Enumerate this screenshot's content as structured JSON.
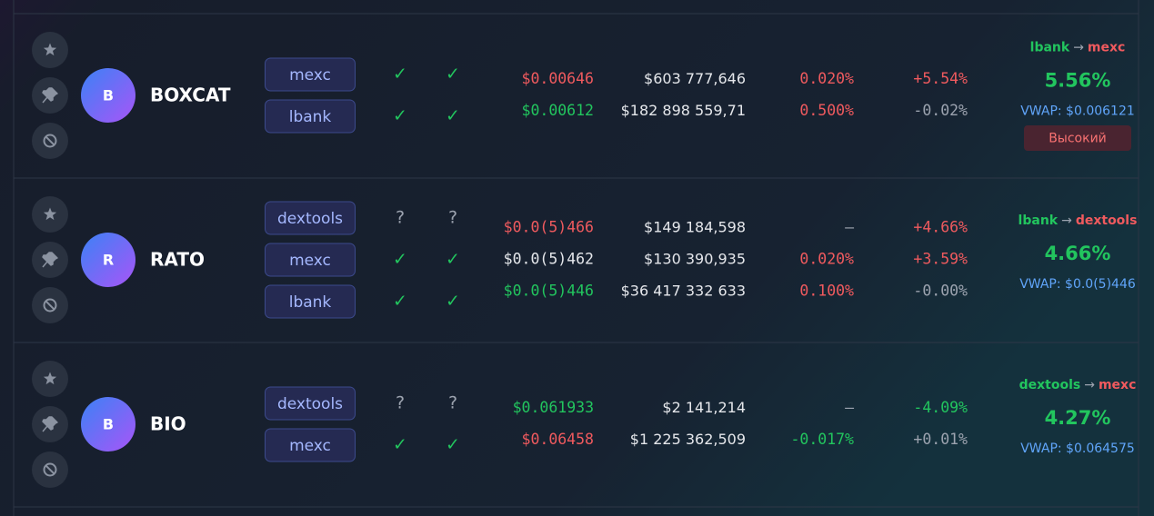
{
  "rows": [
    {
      "avatar": "B",
      "symbol": "BOXCAT",
      "exchanges": [
        {
          "name": "mexc",
          "spot": "✓",
          "futures": "✓",
          "status_color": "#22c55e",
          "price": "$0.00646",
          "price_color": "#f05a5e",
          "volume": "$603 777,646",
          "funding": "0.020%",
          "funding_color": "#f05a5e",
          "change": "+5.54%",
          "change_color": "#f05a5e"
        },
        {
          "name": "lbank",
          "spot": "✓",
          "futures": "✓",
          "status_color": "#22c55e",
          "price": "$0.00612",
          "price_color": "#22c55e",
          "volume": "$182 898 559,71",
          "funding": "0.500%",
          "funding_color": "#f05a5e",
          "change": "-0.02%",
          "change_color": "#9ca3af"
        }
      ],
      "route": {
        "from": "lbank",
        "arrow": "→",
        "to": "mexc"
      },
      "spread": "5.56%",
      "vwap": "VWAP: $0.006121",
      "badge": "Высокий"
    },
    {
      "avatar": "R",
      "symbol": "RATO",
      "exchanges": [
        {
          "name": "dextools",
          "spot": "?",
          "futures": "?",
          "status_color": "#9ca3af",
          "price": "$0.0(5)466",
          "price_color": "#f05a5e",
          "volume": "$149 184,598",
          "funding": "–",
          "funding_color": "#9ca3af",
          "change": "+4.66%",
          "change_color": "#f05a5e"
        },
        {
          "name": "mexc",
          "spot": "✓",
          "futures": "✓",
          "status_color": "#22c55e",
          "price": "$0.0(5)462",
          "price_color": "#e5e7eb",
          "volume": "$130 390,935",
          "funding": "0.020%",
          "funding_color": "#f05a5e",
          "change": "+3.59%",
          "change_color": "#f05a5e"
        },
        {
          "name": "lbank",
          "spot": "✓",
          "futures": "✓",
          "status_color": "#22c55e",
          "price": "$0.0(5)446",
          "price_color": "#22c55e",
          "volume": "$36 417 332 633",
          "funding": "0.100%",
          "funding_color": "#f05a5e",
          "change": "-0.00%",
          "change_color": "#9ca3af"
        }
      ],
      "route": {
        "from": "lbank",
        "arrow": "→",
        "to": "dextools"
      },
      "spread": "4.66%",
      "vwap": "VWAP: $0.0(5)446"
    },
    {
      "avatar": "B",
      "symbol": "BIO",
      "exchanges": [
        {
          "name": "dextools",
          "spot": "?",
          "futures": "?",
          "status_color": "#9ca3af",
          "price": "$0.061933",
          "price_color": "#22c55e",
          "volume": "$2 141,214",
          "funding": "–",
          "funding_color": "#9ca3af",
          "change": "-4.09%",
          "change_color": "#22c55e"
        },
        {
          "name": "mexc",
          "spot": "✓",
          "futures": "✓",
          "status_color": "#22c55e",
          "price": "$0.06458",
          "price_color": "#f05a5e",
          "volume": "$1 225 362,509",
          "funding": "-0.017%",
          "funding_color": "#22c55e",
          "change": "+0.01%",
          "change_color": "#9ca3af"
        }
      ],
      "route": {
        "from": "dextools",
        "arrow": "→",
        "to": "mexc"
      },
      "spread": "4.27%",
      "vwap": "VWAP: $0.064575"
    }
  ]
}
